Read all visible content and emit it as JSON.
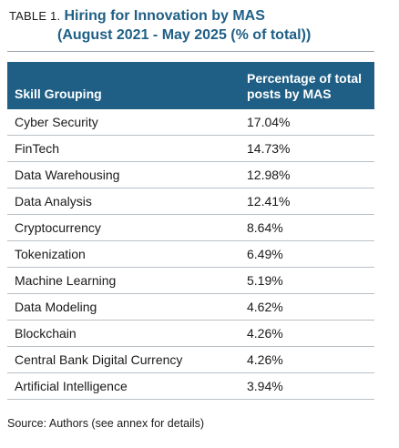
{
  "title": {
    "table_label": "TABLE 1.",
    "line1": "Hiring for Innovation by MAS",
    "line2": "(August 2021 - May 2025 (% of total))"
  },
  "table": {
    "headers": [
      "Skill Grouping",
      "Percentage of total posts by MAS"
    ],
    "rows": [
      {
        "skill": "Cyber Security",
        "pct": "17.04%"
      },
      {
        "skill": "FinTech",
        "pct": "14.73%"
      },
      {
        "skill": "Data Warehousing",
        "pct": "12.98%"
      },
      {
        "skill": "Data Analysis",
        "pct": "12.41%"
      },
      {
        "skill": "Cryptocurrency",
        "pct": "8.64%"
      },
      {
        "skill": "Tokenization",
        "pct": "6.49%"
      },
      {
        "skill": "Machine Learning",
        "pct": "5.19%"
      },
      {
        "skill": "Data Modeling",
        "pct": "4.62%"
      },
      {
        "skill": "Blockchain",
        "pct": "4.26%"
      },
      {
        "skill": "Central Bank Digital Currency",
        "pct": "4.26%"
      },
      {
        "skill": "Artificial Intelligence",
        "pct": "3.94%"
      }
    ]
  },
  "source": "Source: Authors (see annex for details)",
  "colors": {
    "header_bg": "#1f5f86",
    "title_accent": "#1f5f86",
    "rule": "#b8c0c6"
  }
}
